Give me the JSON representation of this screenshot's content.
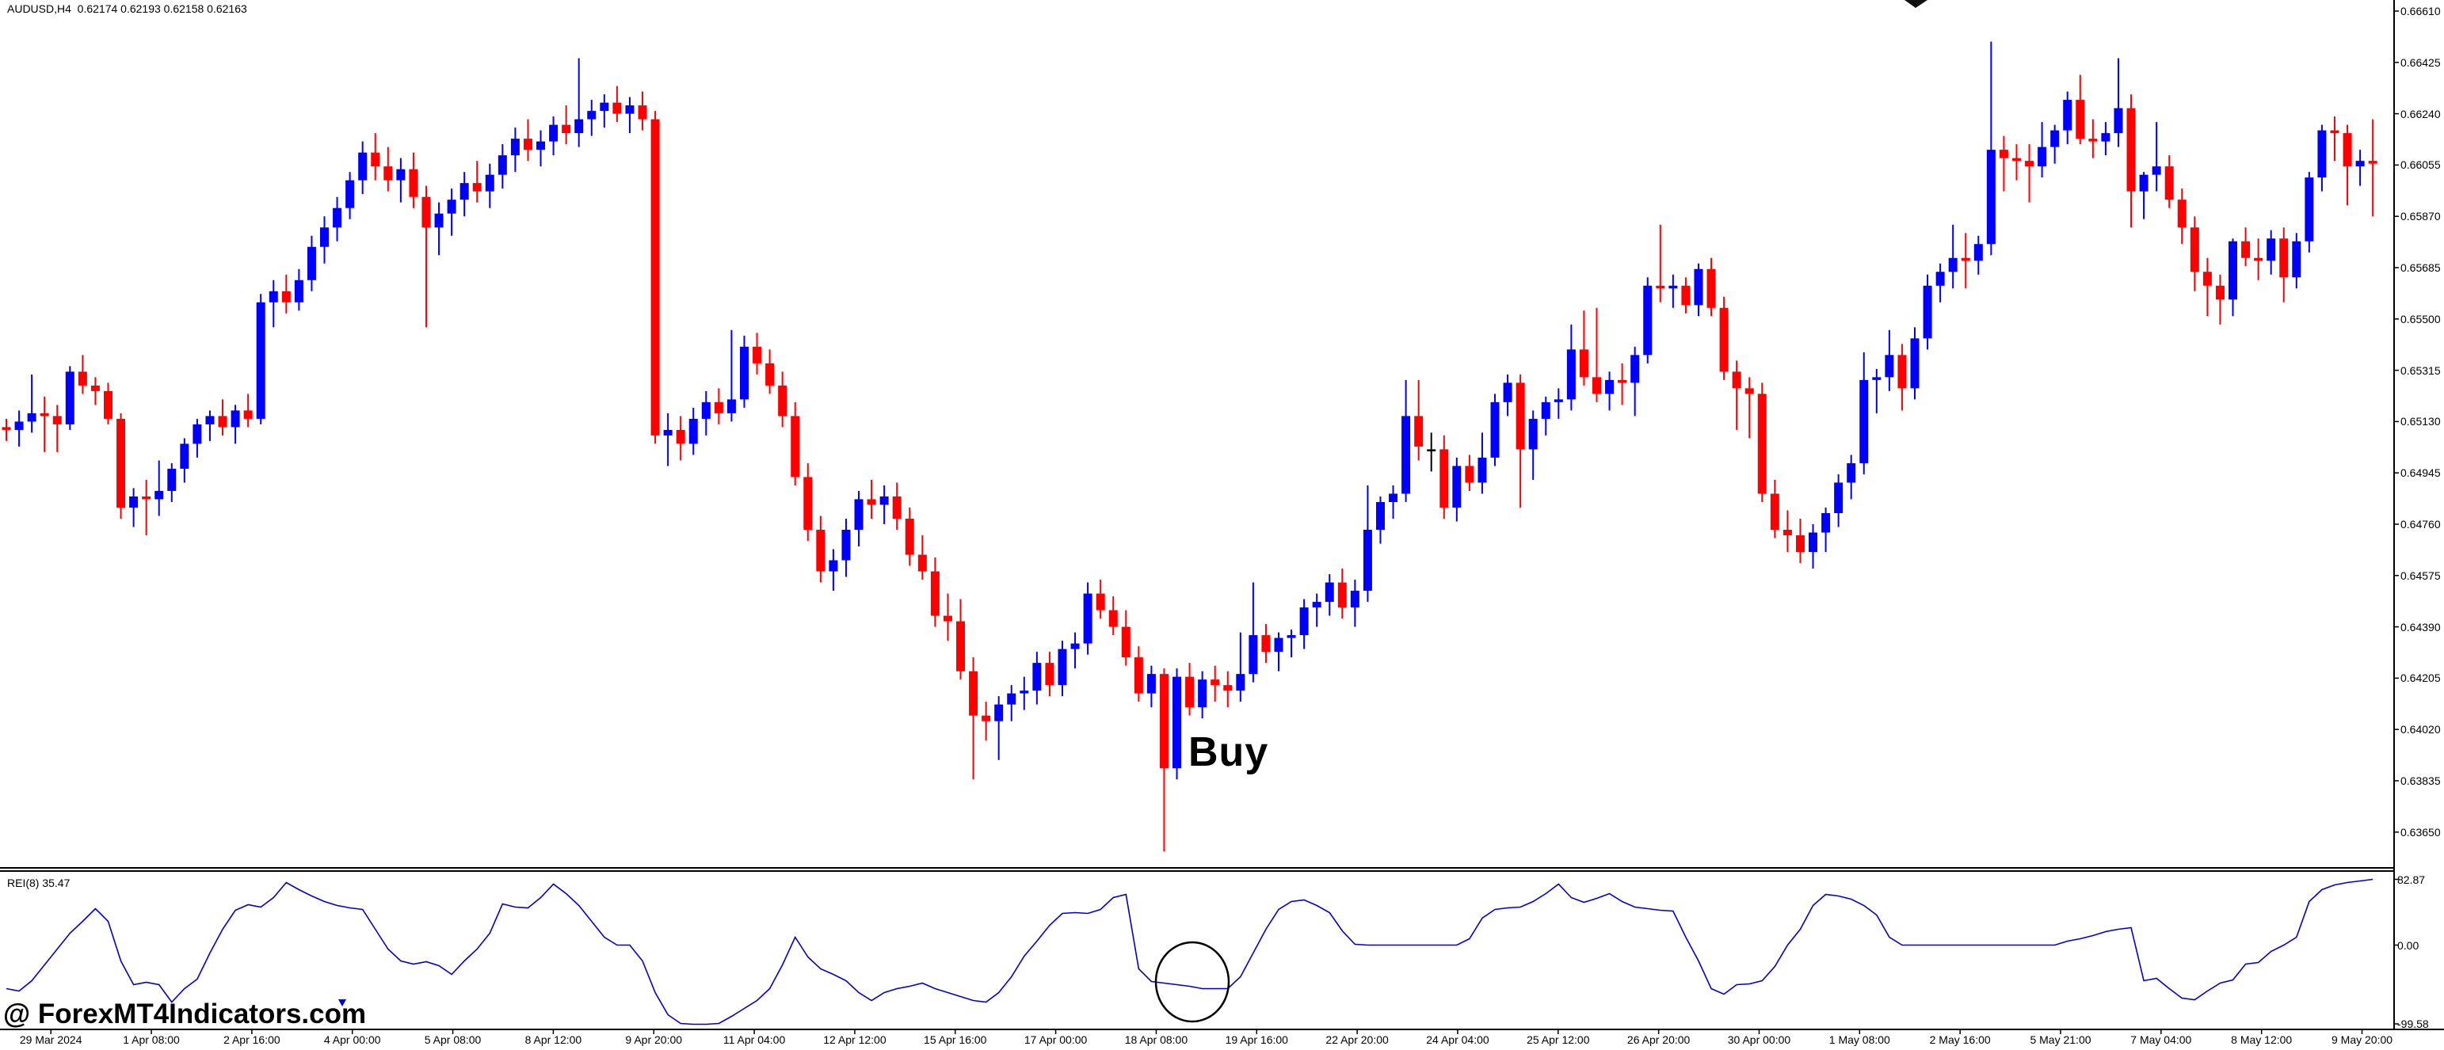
{
  "header": {
    "title": "AUDUSD,H4  0.62174 0.62193 0.62158 0.62163",
    "symbol": "AUDUSD",
    "period": "H4",
    "open": "0.62174",
    "high": "0.62193",
    "low": "0.62158",
    "close": "0.62163"
  },
  "annotations": {
    "buy_label": "Buy",
    "watermark": "@ ForexMT4Indicators.com",
    "circle_marker": "indicator-dip-circle",
    "top_marker": "black-down-triangle",
    "scroll_marker": "small-blue-arrow"
  },
  "indicator_pane": {
    "label": "REI(8) 35.47",
    "axis_labels": [
      "82.87",
      "0.00",
      "-99.58"
    ]
  },
  "price_axis_labels": [
    "0.66610",
    "0.66425",
    "0.66240",
    "0.66055",
    "0.65870",
    "0.65685",
    "0.65500",
    "0.65315",
    "0.65130",
    "0.64945",
    "0.64760",
    "0.64575",
    "0.64390",
    "0.64205",
    "0.64020",
    "0.63835",
    "0.63650"
  ],
  "time_axis_labels": [
    "29 Mar 2024",
    "1 Apr 08:00",
    "2 Apr 16:00",
    "4 Apr 00:00",
    "5 Apr 08:00",
    "8 Apr 12:00",
    "9 Apr 20:00",
    "11 Apr 04:00",
    "12 Apr 12:00",
    "15 Apr 16:00",
    "17 Apr 00:00",
    "18 Apr 08:00",
    "19 Apr 16:00",
    "22 Apr 20:00",
    "24 Apr 04:00",
    "25 Apr 12:00",
    "26 Apr 20:00",
    "30 Apr 00:00",
    "1 May 08:00",
    "2 May 16:00",
    "5 May 21:00",
    "7 May 04:00",
    "8 May 12:00",
    "9 May 20:00"
  ],
  "colors": {
    "bull": "#0000ff",
    "bear": "#ff0000",
    "doji_black": "#000000",
    "indicator_line": "#0000cc",
    "axis": "#000000",
    "background": "#ffffff"
  },
  "chart_data": {
    "type": "candlestick-with-oscillator",
    "symbol": "AUDUSD",
    "timeframe": "H4",
    "price_axis": {
      "top": 0.6661,
      "bottom": 0.6365,
      "step": 0.00185,
      "grid": false
    },
    "indicator_axis": {
      "max": 82.87,
      "mid": 0.0,
      "min": -99.58,
      "name": "REI(8)",
      "current": 35.47
    },
    "legend_position": "top-left",
    "candles": [
      [
        0.6511,
        0.6514,
        0.6506,
        0.651
      ],
      [
        0.651,
        0.6517,
        0.6504,
        0.6513
      ],
      [
        0.6513,
        0.653,
        0.6509,
        0.6516
      ],
      [
        0.6516,
        0.6522,
        0.6502,
        0.6515
      ],
      [
        0.6515,
        0.6519,
        0.6502,
        0.6512
      ],
      [
        0.6512,
        0.6533,
        0.651,
        0.6531
      ],
      [
        0.6531,
        0.6537,
        0.6523,
        0.6526
      ],
      [
        0.6526,
        0.6529,
        0.6519,
        0.6524
      ],
      [
        0.6524,
        0.6527,
        0.6512,
        0.6514
      ],
      [
        0.6514,
        0.6516,
        0.6478,
        0.6482
      ],
      [
        0.6482,
        0.6489,
        0.6475,
        0.6486
      ],
      [
        0.6486,
        0.6492,
        0.6472,
        0.6485
      ],
      [
        0.6485,
        0.6499,
        0.6479,
        0.6488
      ],
      [
        0.6488,
        0.6498,
        0.6484,
        0.6496
      ],
      [
        0.6496,
        0.6507,
        0.6491,
        0.6505
      ],
      [
        0.6505,
        0.6514,
        0.65,
        0.6512
      ],
      [
        0.6512,
        0.6517,
        0.6506,
        0.6515
      ],
      [
        0.6515,
        0.6521,
        0.6508,
        0.6511
      ],
      [
        0.6511,
        0.6519,
        0.6505,
        0.6517
      ],
      [
        0.6517,
        0.6523,
        0.6511,
        0.6514
      ],
      [
        0.6514,
        0.6559,
        0.6512,
        0.6556
      ],
      [
        0.6556,
        0.6564,
        0.6547,
        0.656
      ],
      [
        0.656,
        0.6566,
        0.6552,
        0.6556
      ],
      [
        0.6556,
        0.6568,
        0.6553,
        0.6564
      ],
      [
        0.6564,
        0.658,
        0.656,
        0.6576
      ],
      [
        0.6576,
        0.6587,
        0.657,
        0.6583
      ],
      [
        0.6583,
        0.6594,
        0.6578,
        0.659
      ],
      [
        0.659,
        0.6603,
        0.6586,
        0.66
      ],
      [
        0.66,
        0.6614,
        0.6595,
        0.661
      ],
      [
        0.661,
        0.6617,
        0.66,
        0.6605
      ],
      [
        0.6605,
        0.6612,
        0.6596,
        0.66
      ],
      [
        0.66,
        0.6608,
        0.6592,
        0.6604
      ],
      [
        0.6604,
        0.661,
        0.659,
        0.6594
      ],
      [
        0.6594,
        0.6598,
        0.6547,
        0.6583
      ],
      [
        0.6583,
        0.6592,
        0.6573,
        0.6588
      ],
      [
        0.6588,
        0.6597,
        0.658,
        0.6593
      ],
      [
        0.6593,
        0.6603,
        0.6587,
        0.6599
      ],
      [
        0.6599,
        0.6607,
        0.6592,
        0.6596
      ],
      [
        0.6596,
        0.6606,
        0.659,
        0.6602
      ],
      [
        0.6602,
        0.6613,
        0.6597,
        0.6609
      ],
      [
        0.6609,
        0.6619,
        0.6603,
        0.6615
      ],
      [
        0.6615,
        0.6622,
        0.6607,
        0.6611
      ],
      [
        0.6611,
        0.6618,
        0.6605,
        0.6614
      ],
      [
        0.6614,
        0.6623,
        0.6609,
        0.662
      ],
      [
        0.662,
        0.6627,
        0.6613,
        0.6617
      ],
      [
        0.6617,
        0.6644,
        0.6612,
        0.6622
      ],
      [
        0.6622,
        0.6629,
        0.6616,
        0.6625
      ],
      [
        0.6625,
        0.6631,
        0.6619,
        0.6628
      ],
      [
        0.6628,
        0.6634,
        0.6621,
        0.6624
      ],
      [
        0.6624,
        0.663,
        0.6617,
        0.6627
      ],
      [
        0.6627,
        0.6632,
        0.6618,
        0.6622
      ],
      [
        0.6622,
        0.6625,
        0.6505,
        0.6508
      ],
      [
        0.6508,
        0.6516,
        0.6497,
        0.651
      ],
      [
        0.651,
        0.6515,
        0.6499,
        0.6505
      ],
      [
        0.6505,
        0.6518,
        0.6501,
        0.6514
      ],
      [
        0.6514,
        0.6524,
        0.6508,
        0.652
      ],
      [
        0.652,
        0.6525,
        0.6512,
        0.6516
      ],
      [
        0.6516,
        0.6546,
        0.6513,
        0.6521
      ],
      [
        0.6521,
        0.6544,
        0.6518,
        0.654
      ],
      [
        0.654,
        0.6545,
        0.653,
        0.6534
      ],
      [
        0.6534,
        0.6539,
        0.6523,
        0.6526
      ],
      [
        0.6526,
        0.6531,
        0.6511,
        0.6515
      ],
      [
        0.6515,
        0.652,
        0.649,
        0.6493
      ],
      [
        0.6493,
        0.6498,
        0.647,
        0.6474
      ],
      [
        0.6474,
        0.6479,
        0.6455,
        0.6459
      ],
      [
        0.6459,
        0.6467,
        0.6452,
        0.6463
      ],
      [
        0.6463,
        0.6478,
        0.6457,
        0.6474
      ],
      [
        0.6474,
        0.6488,
        0.6468,
        0.6485
      ],
      [
        0.6485,
        0.6492,
        0.6478,
        0.6483
      ],
      [
        0.6483,
        0.649,
        0.6476,
        0.6486
      ],
      [
        0.6486,
        0.6491,
        0.6474,
        0.6478
      ],
      [
        0.6478,
        0.6482,
        0.6461,
        0.6465
      ],
      [
        0.6465,
        0.6472,
        0.6456,
        0.6459
      ],
      [
        0.6459,
        0.6464,
        0.6439,
        0.6443
      ],
      [
        0.6443,
        0.6451,
        0.6434,
        0.6441
      ],
      [
        0.6441,
        0.6449,
        0.642,
        0.6423
      ],
      [
        0.6423,
        0.6428,
        0.6384,
        0.6407
      ],
      [
        0.6407,
        0.6412,
        0.6398,
        0.6405
      ],
      [
        0.6405,
        0.6414,
        0.6391,
        0.6411
      ],
      [
        0.6411,
        0.6418,
        0.6405,
        0.6415
      ],
      [
        0.6415,
        0.6421,
        0.6409,
        0.6416
      ],
      [
        0.6416,
        0.643,
        0.6411,
        0.6426
      ],
      [
        0.6426,
        0.643,
        0.6414,
        0.6418
      ],
      [
        0.6418,
        0.6434,
        0.6414,
        0.6431
      ],
      [
        0.6431,
        0.6437,
        0.6424,
        0.6433
      ],
      [
        0.6433,
        0.6455,
        0.6429,
        0.6451
      ],
      [
        0.6451,
        0.6456,
        0.6442,
        0.6445
      ],
      [
        0.6445,
        0.645,
        0.6436,
        0.6439
      ],
      [
        0.6439,
        0.6445,
        0.6425,
        0.6428
      ],
      [
        0.6428,
        0.6432,
        0.6412,
        0.6415
      ],
      [
        0.6415,
        0.6425,
        0.641,
        0.6422
      ],
      [
        0.6422,
        0.6424,
        0.6358,
        0.6388
      ],
      [
        0.6388,
        0.6424,
        0.6384,
        0.6421
      ],
      [
        0.6421,
        0.6426,
        0.6407,
        0.641
      ],
      [
        0.641,
        0.6423,
        0.6406,
        0.642
      ],
      [
        0.642,
        0.6425,
        0.6412,
        0.6418
      ],
      [
        0.6418,
        0.6423,
        0.641,
        0.6416
      ],
      [
        0.6416,
        0.6437,
        0.6412,
        0.6422
      ],
      [
        0.6422,
        0.6455,
        0.6419,
        0.6436
      ],
      [
        0.6436,
        0.644,
        0.6426,
        0.643
      ],
      [
        0.643,
        0.6437,
        0.6423,
        0.6435
      ],
      [
        0.6435,
        0.6438,
        0.6428,
        0.6436
      ],
      [
        0.6436,
        0.6449,
        0.6431,
        0.6446
      ],
      [
        0.6446,
        0.6451,
        0.6439,
        0.6448
      ],
      [
        0.6448,
        0.6458,
        0.6443,
        0.6455
      ],
      [
        0.6455,
        0.646,
        0.6442,
        0.6446
      ],
      [
        0.6446,
        0.6456,
        0.6439,
        0.6452
      ],
      [
        0.6452,
        0.649,
        0.6448,
        0.6474
      ],
      [
        0.6474,
        0.6486,
        0.6469,
        0.6484
      ],
      [
        0.6484,
        0.649,
        0.6478,
        0.6487
      ],
      [
        0.6487,
        0.6528,
        0.6484,
        0.6515
      ],
      [
        0.6515,
        0.6528,
        0.6499,
        0.6504
      ],
      [
        0.6503,
        0.6509,
        0.6495,
        0.6503,
        "k"
      ],
      [
        0.6503,
        0.6508,
        0.6478,
        0.6482
      ],
      [
        0.6482,
        0.65,
        0.6477,
        0.6497
      ],
      [
        0.6497,
        0.6501,
        0.6488,
        0.6491
      ],
      [
        0.6491,
        0.6509,
        0.6487,
        0.65
      ],
      [
        0.65,
        0.6523,
        0.6497,
        0.652
      ],
      [
        0.652,
        0.653,
        0.6515,
        0.6527
      ],
      [
        0.6527,
        0.653,
        0.6482,
        0.6503
      ],
      [
        0.6503,
        0.6517,
        0.6492,
        0.6514
      ],
      [
        0.6514,
        0.6522,
        0.6508,
        0.652
      ],
      [
        0.652,
        0.6525,
        0.6514,
        0.6521
      ],
      [
        0.6521,
        0.6548,
        0.6517,
        0.6539
      ],
      [
        0.6539,
        0.6553,
        0.6526,
        0.6529
      ],
      [
        0.6529,
        0.6554,
        0.652,
        0.6523
      ],
      [
        0.6523,
        0.6531,
        0.6517,
        0.6528
      ],
      [
        0.6528,
        0.6534,
        0.6519,
        0.6527
      ],
      [
        0.6527,
        0.654,
        0.6515,
        0.6537
      ],
      [
        0.6537,
        0.6565,
        0.6534,
        0.6562
      ],
      [
        0.6562,
        0.6584,
        0.6556,
        0.6561
      ],
      [
        0.6561,
        0.6566,
        0.6554,
        0.6562
      ],
      [
        0.6562,
        0.6565,
        0.6552,
        0.6555
      ],
      [
        0.6555,
        0.657,
        0.6551,
        0.6568
      ],
      [
        0.6568,
        0.6572,
        0.6551,
        0.6554
      ],
      [
        0.6554,
        0.6558,
        0.6528,
        0.6531
      ],
      [
        0.6531,
        0.6535,
        0.651,
        0.6525
      ],
      [
        0.6525,
        0.6529,
        0.6507,
        0.6523
      ],
      [
        0.6523,
        0.6527,
        0.6484,
        0.6487
      ],
      [
        0.6487,
        0.6492,
        0.6471,
        0.6474
      ],
      [
        0.6474,
        0.6481,
        0.6466,
        0.6472
      ],
      [
        0.6472,
        0.6478,
        0.6462,
        0.6466
      ],
      [
        0.6466,
        0.6476,
        0.646,
        0.6473
      ],
      [
        0.6473,
        0.6482,
        0.6466,
        0.648
      ],
      [
        0.648,
        0.6494,
        0.6475,
        0.6491
      ],
      [
        0.6491,
        0.6501,
        0.6485,
        0.6498
      ],
      [
        0.6498,
        0.6538,
        0.6494,
        0.6528
      ],
      [
        0.6528,
        0.6532,
        0.6516,
        0.6529
      ],
      [
        0.6529,
        0.6546,
        0.6524,
        0.6537
      ],
      [
        0.6537,
        0.6541,
        0.6517,
        0.6525
      ],
      [
        0.6525,
        0.6547,
        0.6521,
        0.6543
      ],
      [
        0.6543,
        0.6566,
        0.6539,
        0.6562
      ],
      [
        0.6562,
        0.657,
        0.6556,
        0.6567
      ],
      [
        0.6567,
        0.6584,
        0.6561,
        0.6572
      ],
      [
        0.6572,
        0.6581,
        0.6561,
        0.6571
      ],
      [
        0.6571,
        0.658,
        0.6566,
        0.6577
      ],
      [
        0.6577,
        0.665,
        0.6573,
        0.6611
      ],
      [
        0.6611,
        0.6616,
        0.6596,
        0.6608
      ],
      [
        0.6608,
        0.6613,
        0.66,
        0.6607
      ],
      [
        0.6607,
        0.6613,
        0.6592,
        0.6605
      ],
      [
        0.6605,
        0.6621,
        0.6601,
        0.6612
      ],
      [
        0.6612,
        0.662,
        0.6606,
        0.6618
      ],
      [
        0.6618,
        0.6632,
        0.6613,
        0.6629
      ],
      [
        0.6629,
        0.6638,
        0.6613,
        0.6615
      ],
      [
        0.6615,
        0.6622,
        0.6608,
        0.6614
      ],
      [
        0.6614,
        0.6621,
        0.6609,
        0.6617
      ],
      [
        0.6617,
        0.6644,
        0.6612,
        0.6626
      ],
      [
        0.6626,
        0.6631,
        0.6583,
        0.6596
      ],
      [
        0.6596,
        0.6603,
        0.6586,
        0.6602
      ],
      [
        0.6602,
        0.6621,
        0.6596,
        0.6605
      ],
      [
        0.6605,
        0.6609,
        0.659,
        0.6593
      ],
      [
        0.6593,
        0.6597,
        0.6577,
        0.6583
      ],
      [
        0.6583,
        0.6587,
        0.656,
        0.6567
      ],
      [
        0.6567,
        0.6572,
        0.6551,
        0.6562
      ],
      [
        0.6562,
        0.6566,
        0.6548,
        0.6557
      ],
      [
        0.6557,
        0.6579,
        0.6551,
        0.6578
      ],
      [
        0.6578,
        0.6583,
        0.6569,
        0.6572
      ],
      [
        0.6572,
        0.6579,
        0.6564,
        0.6571
      ],
      [
        0.6571,
        0.6582,
        0.6566,
        0.6579
      ],
      [
        0.6579,
        0.6583,
        0.6556,
        0.6565
      ],
      [
        0.6565,
        0.6581,
        0.6561,
        0.6578
      ],
      [
        0.6578,
        0.6603,
        0.6574,
        0.6601
      ],
      [
        0.6601,
        0.662,
        0.6596,
        0.6618
      ],
      [
        0.6618,
        0.6623,
        0.6607,
        0.6617
      ],
      [
        0.6617,
        0.662,
        0.6591,
        0.6605
      ],
      [
        0.6605,
        0.6611,
        0.6598,
        0.6607
      ],
      [
        0.6607,
        0.6622,
        0.6587,
        0.6606
      ]
    ],
    "indicator_values": [
      -55,
      -58,
      -45,
      -25,
      -5,
      15,
      30,
      46,
      30,
      -20,
      -50,
      -47,
      -50,
      -72,
      -55,
      -43,
      -10,
      20,
      44,
      51,
      48,
      60,
      79,
      70,
      62,
      55,
      50,
      47,
      45,
      20,
      -5,
      -20,
      -24,
      -21,
      -26,
      -37,
      -20,
      -5,
      15,
      52,
      48,
      47,
      60,
      77,
      65,
      50,
      30,
      10,
      0,
      0,
      -20,
      -60,
      -88,
      -99,
      -100,
      -100,
      -99,
      -90,
      -80,
      -70,
      -55,
      -25,
      10,
      -15,
      -30,
      -37,
      -45,
      -60,
      -70,
      -60,
      -55,
      -52,
      -48,
      -55,
      -60,
      -65,
      -70,
      -72,
      -60,
      -40,
      -14,
      5,
      25,
      40,
      41,
      40,
      45,
      60,
      64,
      -30,
      -46,
      -48,
      -50,
      -52,
      -55,
      -55,
      -55,
      -40,
      -10,
      20,
      45,
      55,
      57,
      50,
      41,
      18,
      1,
      0,
      0,
      0,
      0,
      0,
      0,
      0,
      0,
      8,
      34,
      45,
      47,
      48,
      55,
      65,
      77,
      60,
      54,
      59,
      65,
      55,
      48,
      46,
      44,
      43,
      10,
      -20,
      -55,
      -62,
      -50,
      -49,
      -45,
      -27,
      0,
      20,
      50,
      64,
      62,
      58,
      50,
      38,
      10,
      0,
      0,
      0,
      0,
      0,
      0,
      0,
      0,
      0,
      0,
      0,
      0,
      0,
      5,
      8,
      12,
      17,
      20,
      22,
      -45,
      -42,
      -55,
      -67,
      -69,
      -58,
      -48,
      -44,
      -24,
      -22,
      -8,
      0,
      10,
      55,
      70,
      76,
      79,
      81,
      83
    ]
  }
}
